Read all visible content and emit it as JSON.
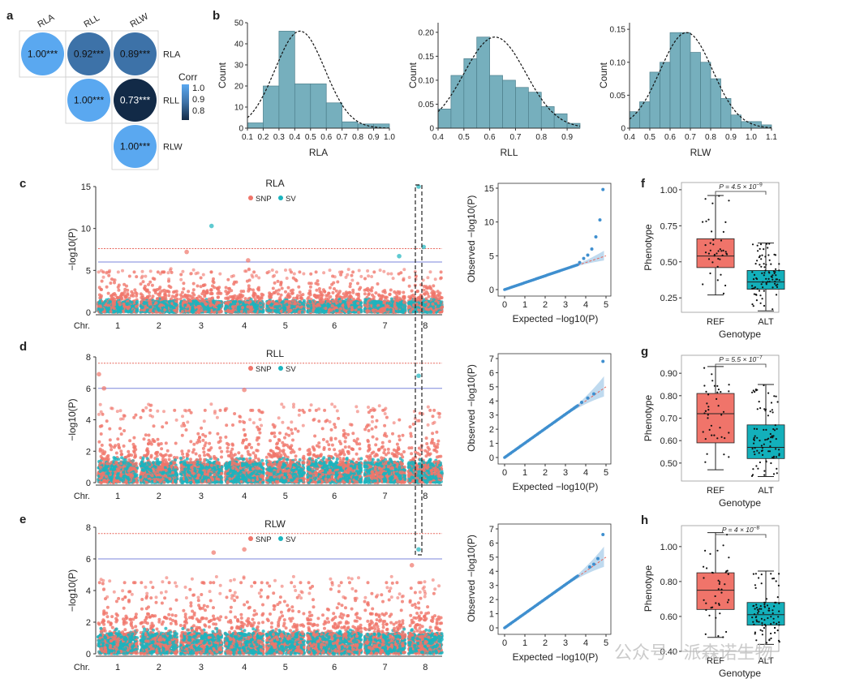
{
  "colors": {
    "snp": "#f0756a",
    "sv": "#1bb4be",
    "hist": "#76afbd",
    "ref_box": "#f0746a",
    "alt_box": "#13b0bb",
    "qq_points": "#3f8fcf",
    "qq_band": "#a9cdea",
    "sig_red": "#e8695f",
    "sug_blue": "#7b86db",
    "corr_light": "#5aa8f0",
    "corr_mid": "#3d72a8",
    "corr_dark": "#122a47"
  },
  "panel_labels": {
    "a": "a",
    "b": "b",
    "c": "c",
    "d": "d",
    "e": "e",
    "f": "f",
    "g": "g",
    "h": "h"
  },
  "watermark": "公众号 · 派森诺生物",
  "chart_data": [
    {
      "panel": "a",
      "type": "heatmap",
      "variables": [
        "RLA",
        "RLL",
        "RLW"
      ],
      "cells": [
        {
          "row": "RLA",
          "col": "RLA",
          "value": 1.0,
          "label": "1.00***"
        },
        {
          "row": "RLA",
          "col": "RLL",
          "value": 0.92,
          "label": "0.92***"
        },
        {
          "row": "RLA",
          "col": "RLW",
          "value": 0.89,
          "label": "0.89***"
        },
        {
          "row": "RLL",
          "col": "RLL",
          "value": 1.0,
          "label": "1.00***"
        },
        {
          "row": "RLL",
          "col": "RLW",
          "value": 0.73,
          "label": "0.73***"
        },
        {
          "row": "RLW",
          "col": "RLW",
          "value": 1.0,
          "label": "1.00***"
        }
      ],
      "legend": {
        "title": "Corr",
        "ticks": [
          "1.0",
          "0.9",
          "0.8"
        ]
      }
    },
    {
      "panel": "b",
      "type": "bar",
      "xlabel": "RLA",
      "ylabel": "Count",
      "bin_edges": [
        0.1,
        0.2,
        0.3,
        0.4,
        0.5,
        0.6,
        0.7,
        0.8,
        0.9,
        1.0
      ],
      "values": [
        2.5,
        20,
        46,
        21,
        21,
        12,
        3,
        2,
        2
      ],
      "xlim": [
        0.1,
        1.0
      ],
      "ylim": [
        0,
        50
      ],
      "xticks": [
        "0.1",
        "0.2",
        "0.3",
        "0.4",
        "0.5",
        "0.6",
        "0.7",
        "0.8",
        "0.9",
        "1.0"
      ],
      "yticks": [
        "0",
        "10",
        "20",
        "30",
        "40",
        "50"
      ],
      "density_curve": true
    },
    {
      "panel": "b",
      "type": "bar",
      "xlabel": "RLL",
      "ylabel": "Count",
      "bin_edges": [
        0.4,
        0.45,
        0.5,
        0.55,
        0.6,
        0.65,
        0.7,
        0.75,
        0.8,
        0.85,
        0.9,
        0.95
      ],
      "values": [
        0.04,
        0.11,
        0.145,
        0.19,
        0.11,
        0.1,
        0.085,
        0.075,
        0.045,
        0.03,
        0.01
      ],
      "xlim": [
        0.4,
        0.95
      ],
      "ylim": [
        0,
        0.22
      ],
      "xticks": [
        "0.4",
        "0.5",
        "0.6",
        "0.7",
        "0.8",
        "0.9"
      ],
      "yticks": [
        "0",
        "0.05",
        "0.10",
        "0.15",
        "0.20"
      ],
      "density_curve": true
    },
    {
      "panel": "b",
      "type": "bar",
      "xlabel": "RLW",
      "ylabel": "Count",
      "bin_edges": [
        0.4,
        0.45,
        0.5,
        0.55,
        0.6,
        0.65,
        0.7,
        0.75,
        0.8,
        0.85,
        0.9,
        0.95,
        1.0,
        1.05,
        1.1
      ],
      "values": [
        0.025,
        0.04,
        0.085,
        0.1,
        0.145,
        0.145,
        0.115,
        0.1,
        0.075,
        0.045,
        0.02,
        0.01,
        0.01,
        0.005
      ],
      "xlim": [
        0.4,
        1.1
      ],
      "ylim": [
        0,
        0.16
      ],
      "xticks": [
        "0.4",
        "0.5",
        "0.6",
        "0.7",
        "0.8",
        "0.9",
        "1.0",
        "1.1"
      ],
      "yticks": [
        "0",
        "0.05",
        "0.10",
        "0.15"
      ],
      "density_curve": true
    },
    {
      "panel": "c",
      "type": "scatter",
      "subtype": "manhattan",
      "title": "RLA",
      "ylabel": "−log10(P)",
      "ylim": [
        0,
        15
      ],
      "yticks": [
        "0",
        "5",
        "10",
        "15"
      ],
      "chromosomes": [
        "1",
        "2",
        "3",
        "4",
        "5",
        "6",
        "7",
        "8"
      ],
      "xprefix": "Chr.",
      "thresholds": {
        "significant": 7.6,
        "suggestive": 6.0
      },
      "legend": [
        "SNP",
        "SV"
      ],
      "background_max": 4.8,
      "seed": 11,
      "top_hits": [
        {
          "chr": 3,
          "pos": 0.75,
          "y": 10.3,
          "type": "SV"
        },
        {
          "chr": 3,
          "pos": 0.15,
          "y": 7.2,
          "type": "SNP"
        },
        {
          "chr": 8,
          "pos": 0.3,
          "y": 15.0,
          "type": "SV"
        },
        {
          "chr": 8,
          "pos": 0.45,
          "y": 7.8,
          "type": "SV"
        },
        {
          "chr": 7,
          "pos": 0.85,
          "y": 6.7,
          "type": "SV"
        },
        {
          "chr": 4,
          "pos": 0.6,
          "y": 6.2,
          "type": "SNP"
        }
      ]
    },
    {
      "panel": "c",
      "type": "scatter",
      "subtype": "qq",
      "xlabel": "Expected −log10(P)",
      "ylabel": "Observed −log10(P)",
      "xlim": [
        0,
        5
      ],
      "ylim": [
        0,
        15
      ],
      "xticks": [
        "0",
        "1",
        "2",
        "3",
        "4",
        "5"
      ],
      "yticks": [
        "0",
        "5",
        "10",
        "15"
      ],
      "upper_points": [
        [
          3.7,
          4.0
        ],
        [
          3.9,
          4.6
        ],
        [
          4.1,
          5.1
        ],
        [
          4.3,
          6.0
        ],
        [
          4.5,
          7.8
        ],
        [
          4.7,
          10.3
        ],
        [
          4.85,
          14.8
        ]
      ]
    },
    {
      "panel": "d",
      "type": "scatter",
      "subtype": "manhattan",
      "title": "RLL",
      "ylabel": "−log10(P)",
      "ylim": [
        0,
        8
      ],
      "yticks": [
        "0",
        "2",
        "4",
        "6",
        "8"
      ],
      "chromosomes": [
        "1",
        "2",
        "3",
        "4",
        "5",
        "6",
        "7",
        "8"
      ],
      "xprefix": "Chr.",
      "thresholds": {
        "significant": 7.6,
        "suggestive": 6.0
      },
      "legend": [
        "SNP",
        "SV"
      ],
      "background_max": 4.6,
      "seed": 23,
      "top_hits": [
        {
          "chr": 1,
          "pos": 0.02,
          "y": 6.9,
          "type": "SNP"
        },
        {
          "chr": 1,
          "pos": 0.15,
          "y": 6.0,
          "type": "SNP"
        },
        {
          "chr": 4,
          "pos": 0.5,
          "y": 5.9,
          "type": "SNP"
        },
        {
          "chr": 8,
          "pos": 0.3,
          "y": 6.8,
          "type": "SV"
        }
      ]
    },
    {
      "panel": "d",
      "type": "scatter",
      "subtype": "qq",
      "xlabel": "Expected −log10(P)",
      "ylabel": "Observed −log10(P)",
      "xlim": [
        0,
        5
      ],
      "ylim": [
        0,
        7
      ],
      "xticks": [
        "0",
        "1",
        "2",
        "3",
        "4",
        "5"
      ],
      "yticks": [
        "0",
        "1",
        "2",
        "3",
        "4",
        "5",
        "6",
        "7"
      ],
      "upper_points": [
        [
          3.8,
          3.9
        ],
        [
          4.1,
          4.2
        ],
        [
          4.4,
          4.5
        ],
        [
          4.85,
          6.8
        ]
      ]
    },
    {
      "panel": "e",
      "type": "scatter",
      "subtype": "manhattan",
      "title": "RLW",
      "ylabel": "−log10(P)",
      "ylim": [
        0,
        8
      ],
      "yticks": [
        "0",
        "2",
        "4",
        "6",
        "8"
      ],
      "chromosomes": [
        "1",
        "2",
        "3",
        "4",
        "5",
        "6",
        "7",
        "8"
      ],
      "xprefix": "Chr.",
      "thresholds": {
        "significant": 7.6,
        "suggestive": 6.0
      },
      "legend": [
        "SNP",
        "SV"
      ],
      "background_max": 4.5,
      "seed": 37,
      "top_hits": [
        {
          "chr": 3,
          "pos": 0.8,
          "y": 6.4,
          "type": "SNP"
        },
        {
          "chr": 4,
          "pos": 0.5,
          "y": 6.6,
          "type": "SNP"
        },
        {
          "chr": 8,
          "pos": 0.3,
          "y": 6.6,
          "type": "SV"
        },
        {
          "chr": 8,
          "pos": 0.1,
          "y": 5.6,
          "type": "SNP"
        }
      ]
    },
    {
      "panel": "e",
      "type": "scatter",
      "subtype": "qq",
      "xlabel": "Expected −log10(P)",
      "ylabel": "Observed −log10(P)",
      "xlim": [
        0,
        5
      ],
      "ylim": [
        0,
        7
      ],
      "xticks": [
        "0",
        "1",
        "2",
        "3",
        "4",
        "5"
      ],
      "yticks": [
        "0",
        "1",
        "2",
        "3",
        "4",
        "5",
        "6",
        "7"
      ],
      "upper_points": [
        [
          4.2,
          4.3
        ],
        [
          4.4,
          4.5
        ],
        [
          4.6,
          4.9
        ],
        [
          4.85,
          6.6
        ]
      ]
    },
    {
      "panel": "f",
      "type": "box",
      "xlabel": "Genotype",
      "ylabel": "Phenotype",
      "pvalue_label": "P = 4.5 × 10",
      "pvalue_exp": "−9",
      "ylim": [
        0.15,
        1.05
      ],
      "yticks": [
        "0.25",
        "0.50",
        "0.75",
        "1.00"
      ],
      "ytick_values": [
        0.25,
        0.5,
        0.75,
        1.0
      ],
      "groups": [
        {
          "name": "REF",
          "whisker_low": 0.27,
          "q1": 0.46,
          "median": 0.54,
          "q3": 0.66,
          "whisker_high": 0.96,
          "n": 40,
          "seed": 3
        },
        {
          "name": "ALT",
          "whisker_low": 0.16,
          "q1": 0.31,
          "median": 0.36,
          "q3": 0.44,
          "whisker_high": 0.63,
          "n": 85,
          "seed": 7
        }
      ]
    },
    {
      "panel": "g",
      "type": "box",
      "xlabel": "Genotype",
      "ylabel": "Phenotype",
      "pvalue_label": "P = 5.5 × 10",
      "pvalue_exp": "−7",
      "ylim": [
        0.42,
        0.98
      ],
      "yticks": [
        "0.50",
        "0.60",
        "0.70",
        "0.80",
        "0.90"
      ],
      "ytick_values": [
        0.5,
        0.6,
        0.7,
        0.8,
        0.9
      ],
      "groups": [
        {
          "name": "REF",
          "whisker_low": 0.47,
          "q1": 0.59,
          "median": 0.72,
          "q3": 0.81,
          "whisker_high": 0.93,
          "n": 40,
          "seed": 5
        },
        {
          "name": "ALT",
          "whisker_low": 0.44,
          "q1": 0.52,
          "median": 0.57,
          "q3": 0.67,
          "whisker_high": 0.85,
          "n": 85,
          "seed": 9
        }
      ]
    },
    {
      "panel": "h",
      "type": "box",
      "xlabel": "Genotype",
      "ylabel": "Phenotype",
      "pvalue_label": "P = 4 × 10",
      "pvalue_exp": "−8",
      "ylim": [
        0.4,
        1.12
      ],
      "yticks": [
        "0.40",
        "0.60",
        "0.80",
        "1.00"
      ],
      "ytick_values": [
        0.4,
        0.6,
        0.8,
        1.0
      ],
      "groups": [
        {
          "name": "REF",
          "whisker_low": 0.48,
          "q1": 0.64,
          "median": 0.75,
          "q3": 0.85,
          "whisker_high": 1.08,
          "n": 40,
          "seed": 13
        },
        {
          "name": "ALT",
          "whisker_low": 0.44,
          "q1": 0.55,
          "median": 0.61,
          "q3": 0.68,
          "whisker_high": 0.86,
          "n": 85,
          "seed": 17
        }
      ]
    }
  ]
}
